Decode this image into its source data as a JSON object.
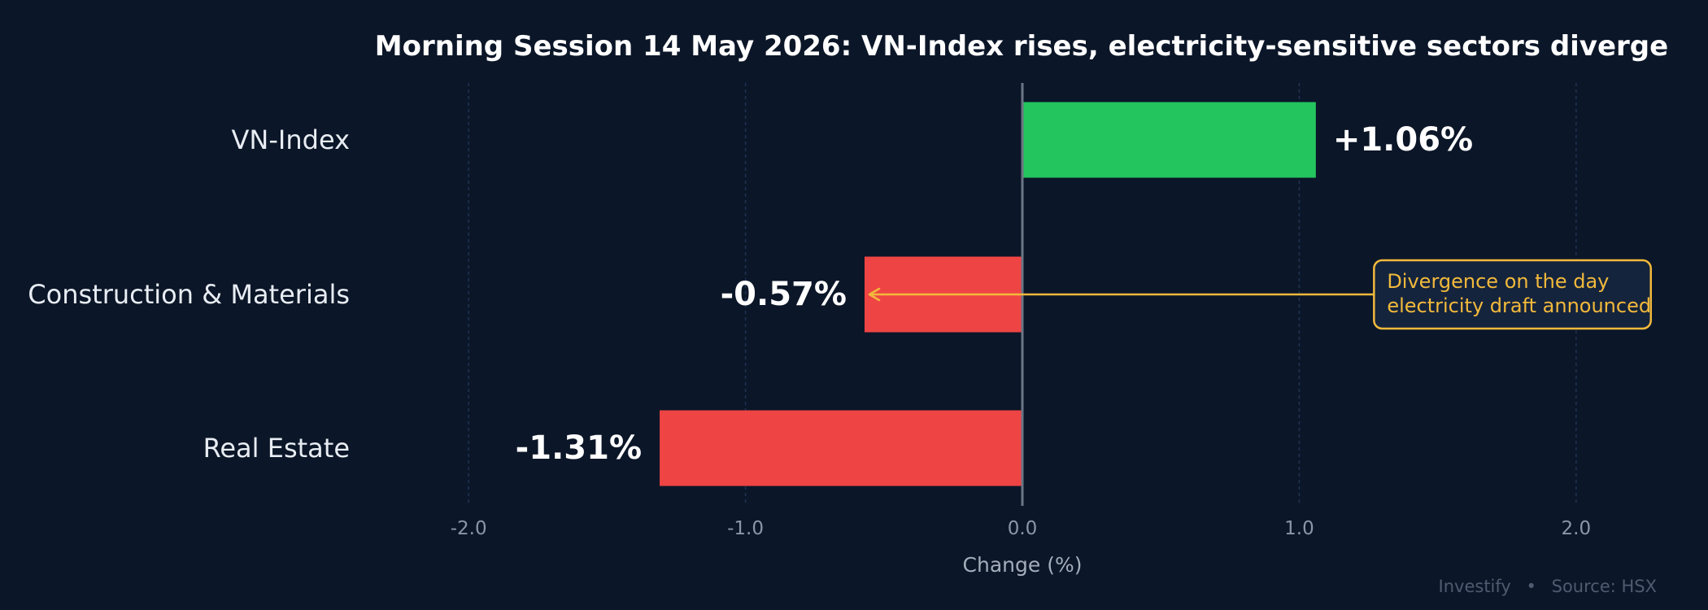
{
  "chart_data": {
    "type": "bar",
    "orientation": "horizontal",
    "title": "Morning Session 14 May 2026: VN-Index rises, electricity-sensitive sectors diverge",
    "xlabel": "Change (%)",
    "ylabel": "",
    "xlim": [
      -2.4,
      2.4
    ],
    "x_ticks": [
      -2.0,
      -1.0,
      0.0,
      1.0,
      2.0
    ],
    "x_tick_labels": [
      "-2.0",
      "-1.0",
      "0.0",
      "1.0",
      "2.0"
    ],
    "grid": "vertical dashed",
    "categories": [
      "VN-Index",
      "Construction & Materials",
      "Real Estate"
    ],
    "values": [
      1.06,
      -0.57,
      -1.31
    ],
    "value_labels": [
      "+1.06%",
      "-0.57%",
      "-1.31%"
    ],
    "colors": {
      "positive": "#22c55e",
      "negative": "#ef4444",
      "annotation": "#f2b93b",
      "zero_line": "#6b7585",
      "grid": "#1f3354",
      "background": "#0b1628"
    },
    "annotation": {
      "line1": "Divergence on the day",
      "line2": "electricity draft announced",
      "target_category": "Construction & Materials",
      "target_value": -0.57,
      "box_x_range": [
        1.27,
        2.27
      ]
    },
    "footer": {
      "brand": "Investify",
      "separator": "•",
      "source": "Source: HSX"
    }
  }
}
